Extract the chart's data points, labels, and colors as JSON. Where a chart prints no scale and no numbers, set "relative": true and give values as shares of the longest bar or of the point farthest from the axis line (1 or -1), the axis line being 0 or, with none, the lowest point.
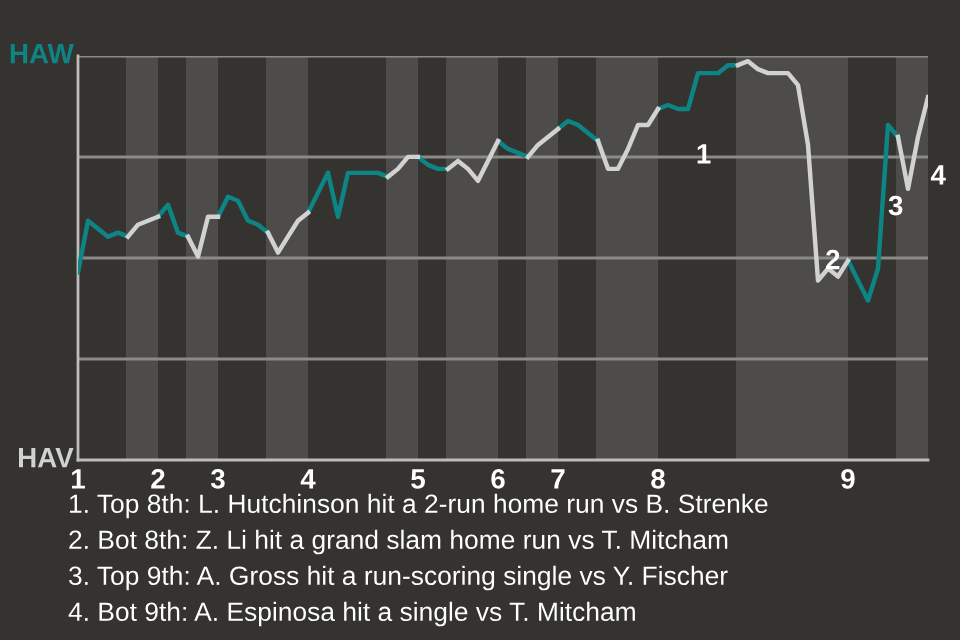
{
  "chart_data": {
    "type": "line",
    "relative": true,
    "categories": [
      "1",
      null,
      null,
      null,
      null,
      null,
      null,
      null,
      "2",
      null,
      null,
      null,
      null,
      null,
      "3",
      null,
      null,
      null,
      null,
      null,
      null,
      null,
      null,
      "4",
      null,
      null,
      null,
      null,
      null,
      null,
      null,
      null,
      null,
      null,
      "5",
      null,
      null,
      null,
      null,
      null,
      null,
      null,
      "6",
      null,
      null,
      null,
      null,
      null,
      "7",
      null,
      null,
      null,
      null,
      null,
      null,
      null,
      null,
      null,
      "8",
      null,
      null,
      null,
      null,
      null,
      null,
      null,
      null,
      null,
      null,
      null,
      null,
      null,
      null,
      null,
      null,
      null,
      null,
      "9",
      null,
      null,
      null,
      null,
      null,
      null,
      null,
      null
    ],
    "grid": "y",
    "series": [
      {
        "color": "#0e8585",
        "values": [
          0.47,
          0.6,
          0.58,
          0.56,
          0.57,
          0.56,
          null,
          null,
          0.61,
          0.64,
          0.57,
          0.56,
          null,
          null,
          0.61,
          0.66,
          0.65,
          0.6,
          0.59,
          0.57,
          null,
          null,
          null,
          0.62,
          0.67,
          0.72,
          0.61,
          0.72,
          0.72,
          0.72,
          0.72,
          0.71,
          null,
          null,
          0.76,
          0.74,
          0.73,
          0.73,
          null,
          null,
          null,
          null,
          0.8,
          0.78,
          0.77,
          0.76,
          null,
          null,
          0.83,
          0.85,
          0.84,
          0.82,
          0.8,
          null,
          null,
          null,
          null,
          null,
          0.88,
          0.89,
          0.88,
          0.88,
          0.97,
          0.97,
          0.97,
          0.99,
          0.99,
          null,
          null,
          null,
          null,
          null,
          null,
          null,
          null,
          null,
          null,
          0.5,
          0.45,
          0.4,
          0.48,
          0.84,
          0.81,
          null,
          null,
          null
        ]
      },
      {
        "color": "#d2d2d0",
        "values": [
          null,
          null,
          null,
          null,
          null,
          0.56,
          0.59,
          0.6,
          0.61,
          null,
          null,
          0.56,
          0.51,
          0.61,
          0.61,
          null,
          null,
          null,
          null,
          0.57,
          0.52,
          0.56,
          0.6,
          0.62,
          null,
          null,
          null,
          null,
          null,
          null,
          null,
          0.71,
          0.73,
          0.76,
          0.76,
          null,
          null,
          0.73,
          0.75,
          0.73,
          0.7,
          0.75,
          0.8,
          null,
          null,
          0.76,
          0.79,
          0.81,
          0.83,
          null,
          null,
          null,
          0.8,
          0.73,
          0.73,
          0.78,
          0.84,
          0.84,
          0.88,
          null,
          null,
          null,
          null,
          null,
          null,
          null,
          0.99,
          1,
          0.98,
          0.97,
          0.97,
          0.97,
          0.94,
          0.79,
          0.45,
          0.48,
          0.46,
          0.5,
          null,
          null,
          null,
          null,
          0.81,
          0.68,
          0.81,
          0.91
        ]
      }
    ],
    "annotations": [
      "HAW",
      "HAV",
      "1",
      "2",
      "3",
      "4",
      "1. Top 8th: L. Hutchinson hit a 2-run home run vs B. Strenke",
      "2. Bot 8th: Z. Li hit a grand slam home run vs T. Mitcham",
      "3. Top 9th: A. Gross hit a run-scoring single vs Y. Fischer",
      "4. Bot 9th: A. Espinosa hit a single vs T. Mitcham"
    ]
  }
}
